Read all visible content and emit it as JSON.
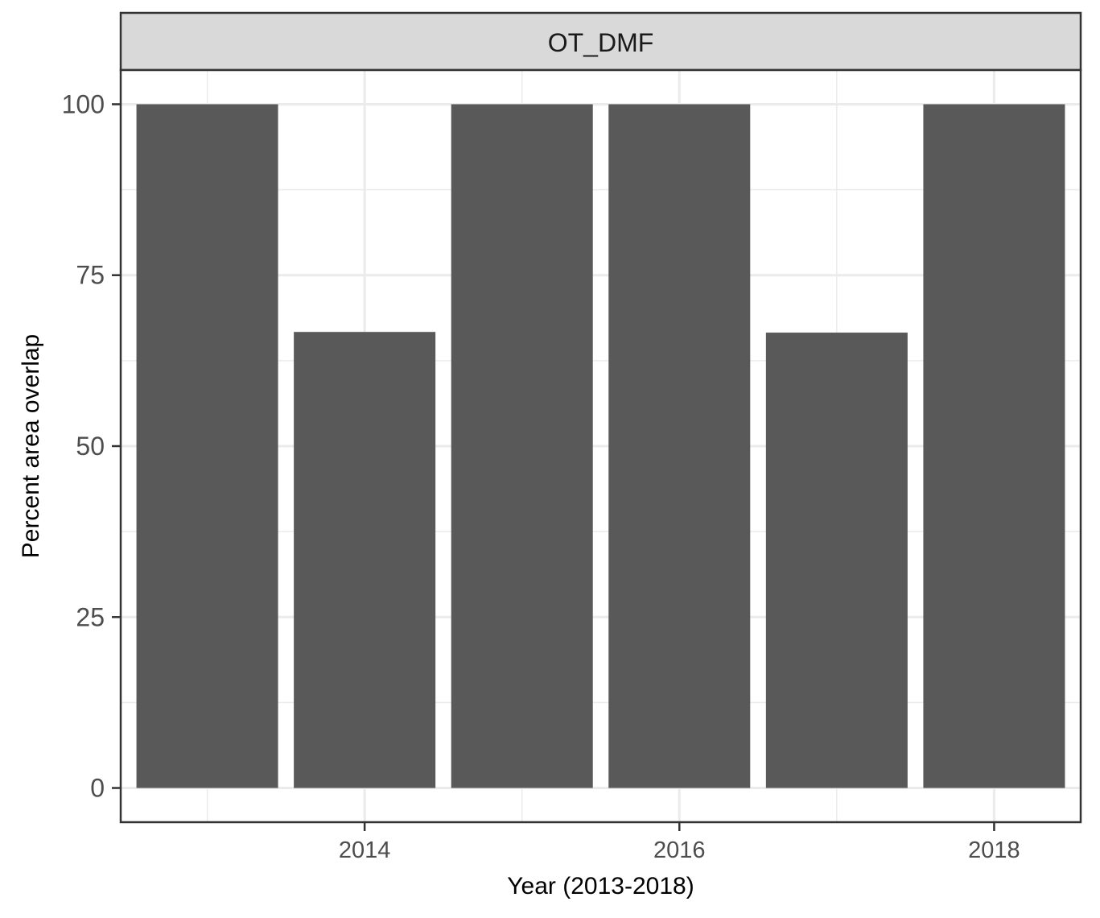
{
  "chart_data": {
    "type": "bar",
    "facet_label": "OT_DMF",
    "x": [
      2013,
      2014,
      2015,
      2016,
      2017,
      2018
    ],
    "values": [
      100,
      66.7,
      100,
      100,
      66.6,
      100
    ],
    "xlabel": "Year (2013-2018)",
    "ylabel": "Percent area overlap",
    "x_ticks": [
      "2014",
      "2016",
      "2018"
    ],
    "y_ticks": [
      "0",
      "25",
      "50",
      "75",
      "100"
    ],
    "xlim": [
      2012.45,
      2018.55
    ],
    "ylim": [
      -5,
      105
    ],
    "grid": true,
    "bar_color": "#595959",
    "strip_color": "#d9d9d9",
    "panel_border_color": "#333333",
    "grid_color": "#ebebeb"
  }
}
